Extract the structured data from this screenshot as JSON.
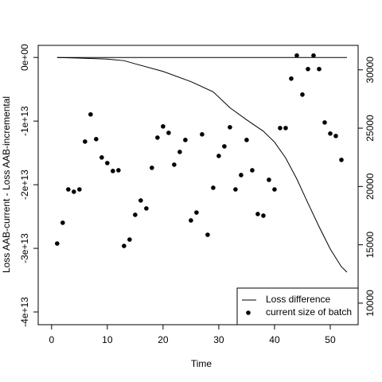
{
  "chart_data": {
    "type": "line",
    "x_label": "Time",
    "y_label": "Loss AAB-current - Loss AAB-incremental",
    "xlim": [
      -2.4,
      55
    ],
    "xticks": [
      0,
      10,
      20,
      30,
      40,
      50
    ],
    "ylim": [
      -42000000000000.0,
      1900000000000.0
    ],
    "yticks": [
      {
        "value": 0,
        "label": "0e+00"
      },
      {
        "value": -10000000000000.0,
        "label": "-1e+13"
      },
      {
        "value": -20000000000000.0,
        "label": "-2e+13"
      },
      {
        "value": -30000000000000.0,
        "label": "-3e+13"
      },
      {
        "value": -40000000000000.0,
        "label": "-4e+13"
      }
    ],
    "y2lim": [
      8150,
      32100
    ],
    "y2ticks": [
      10000,
      15000,
      20000,
      25000,
      30000
    ],
    "legend": "bottom-right",
    "reference_line": {
      "x": [
        1,
        53
      ],
      "values": [
        0,
        0
      ]
    },
    "series": [
      {
        "name": "Loss difference",
        "color": "#000000",
        "x": [
          1,
          5,
          10,
          13,
          15,
          20,
          25,
          29,
          32,
          35,
          38,
          40,
          42,
          44,
          46,
          48,
          50,
          52,
          53
        ],
        "values": [
          0,
          -100000000000.0,
          -250000000000.0,
          -500000000000.0,
          -1000000000000.0,
          -2200000000000.0,
          -3800000000000.0,
          -5400000000000.0,
          -7900000000000.0,
          -9800000000000.0,
          -11600000000000.0,
          -13300000000000.0,
          -15800000000000.0,
          -19100000000000.0,
          -22900000000000.0,
          -26600000000000.0,
          -30100000000000.0,
          -32900000000000.0,
          -33750000000000.0
        ]
      },
      {
        "name": "current size of batch",
        "color": "#000000",
        "axis": "y2",
        "x": [
          1,
          2,
          3,
          4,
          5,
          6,
          7,
          8,
          9,
          10,
          11,
          12,
          13,
          14,
          15,
          16,
          17,
          18,
          19,
          20,
          21,
          22,
          23,
          24,
          25,
          26,
          27,
          28,
          29,
          30,
          31,
          32,
          33,
          34,
          35,
          36,
          37,
          38,
          39,
          40,
          41,
          42,
          43,
          44,
          45,
          46,
          47,
          48,
          49,
          50,
          51,
          52
        ],
        "values": [
          15110,
          16890,
          19750,
          19550,
          19750,
          23850,
          26180,
          24060,
          22490,
          22010,
          21330,
          21390,
          14900,
          15450,
          17570,
          18800,
          18120,
          21600,
          24190,
          25150,
          24600,
          21870,
          22960,
          23990,
          17090,
          17770,
          24470,
          15860,
          19890,
          22620,
          23440,
          25080,
          19750,
          20980,
          23990,
          21390,
          17640,
          17500,
          20570,
          19750,
          25010,
          25010,
          29250,
          31230,
          27880,
          30070,
          31230,
          30070,
          25490,
          24540,
          24330,
          22280
        ]
      }
    ]
  }
}
